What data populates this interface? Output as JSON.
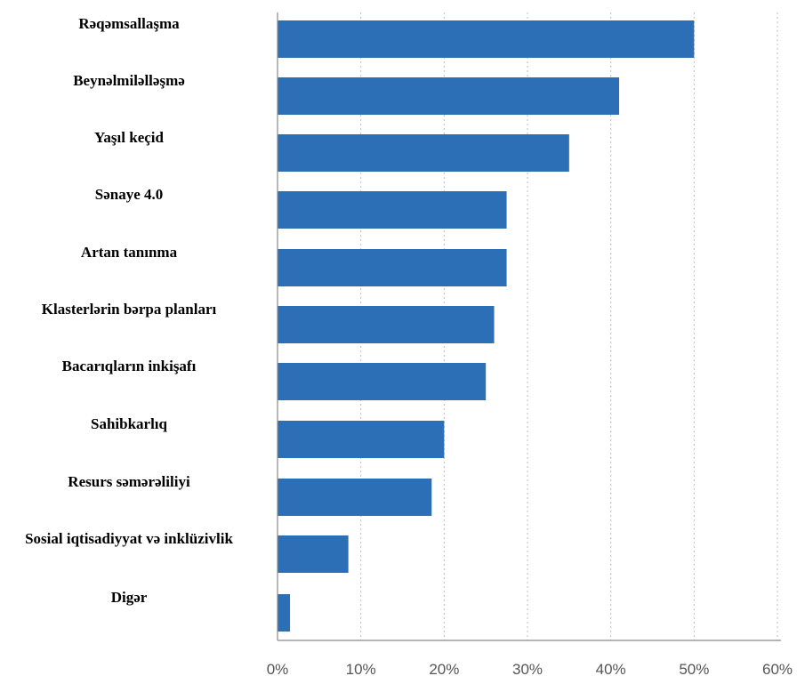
{
  "chart_data": {
    "type": "bar",
    "orientation": "horizontal",
    "categories": [
      "Rəqəmsallaşma",
      "Beynəlmiləlləşmə",
      "Yaşıl keçid",
      "Sənaye 4.0",
      "Artan tanınma",
      "Klasterlərin  bərpa planları",
      "Bacarıqların inkişafı",
      "Sahibkarlıq",
      "Resurs səmərəliliyi",
      "Sosial iqtisadiyyat və inklüzivlik",
      "Digər"
    ],
    "values": [
      50,
      41,
      35,
      27.5,
      27.5,
      26,
      25,
      20,
      18.5,
      8.5,
      1.5
    ],
    "xlim": [
      0,
      60
    ],
    "xticks": [
      "0%",
      "10%",
      "20%",
      "30%",
      "40%",
      "50%",
      "60%"
    ],
    "title": "",
    "xlabel": "",
    "ylabel": "",
    "grid": "vertical dashed",
    "bar_color": "#2c6fb7"
  }
}
